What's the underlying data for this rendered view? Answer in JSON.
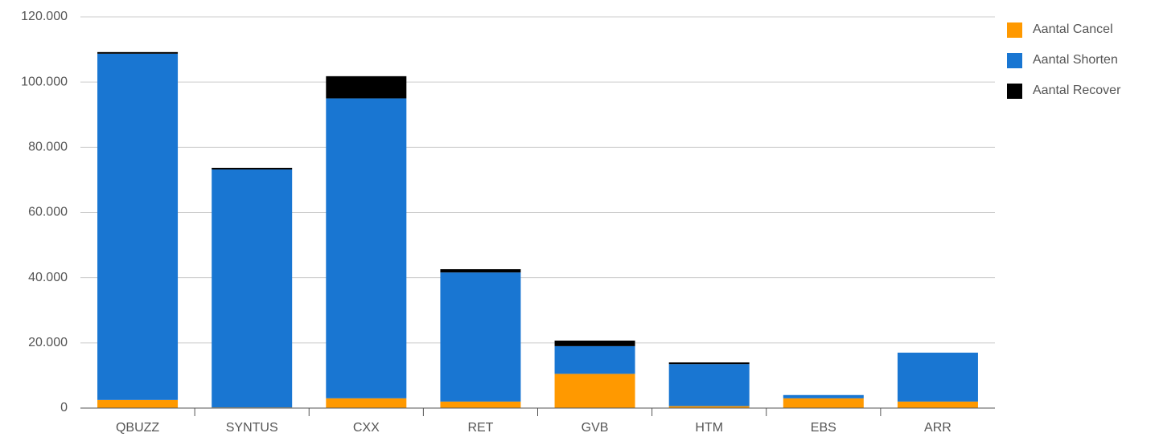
{
  "chart_data": {
    "type": "stacked_bar",
    "categories": [
      "QBUZZ",
      "SYNTUS",
      "CXX",
      "RET",
      "GVB",
      "HTM",
      "EBS",
      "ARR"
    ],
    "series": [
      {
        "name": "Aantal Cancel",
        "color": "#ff9900",
        "values": [
          2500,
          200,
          3000,
          2000,
          10500,
          600,
          3000,
          2000
        ]
      },
      {
        "name": "Aantal Shorten",
        "color": "#1976d2",
        "values": [
          106200,
          73000,
          92000,
          39600,
          8500,
          12900,
          1000,
          15000
        ]
      },
      {
        "name": "Aantal Recover",
        "color": "#000000",
        "values": [
          500,
          500,
          6800,
          1000,
          1700,
          500,
          0,
          0
        ]
      }
    ],
    "ylim": [
      0,
      120000
    ],
    "yticks": [
      0,
      {
        "value": 20000,
        "label": "20.000"
      },
      {
        "value": 40000,
        "label": "40.000"
      },
      {
        "value": 60000,
        "label": "60.000"
      },
      {
        "value": 80000,
        "label": "80.000"
      },
      {
        "value": 100000,
        "label": "100.000"
      },
      {
        "value": 120000,
        "label": "120.000"
      }
    ],
    "grid": true,
    "legend": "right"
  }
}
